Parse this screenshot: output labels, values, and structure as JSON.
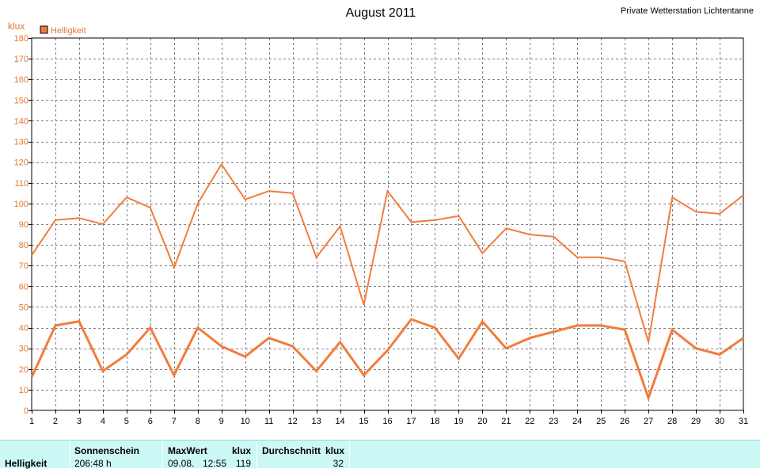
{
  "header": {
    "title": "August 2011",
    "station": "Private Wetterstation Lichtentanne"
  },
  "colors": {
    "series": "#f27c3c",
    "axis_text": "#e07830",
    "grid": "#808080",
    "summary_bg": "#ccf8f6"
  },
  "chart_data": {
    "type": "line",
    "title": "August 2011",
    "ylabel": "klux",
    "ylim": [
      0,
      180
    ],
    "yticks": [
      0,
      10,
      20,
      30,
      40,
      50,
      60,
      70,
      80,
      90,
      100,
      110,
      120,
      130,
      140,
      150,
      160,
      170,
      180
    ],
    "x": [
      1,
      2,
      3,
      4,
      5,
      6,
      7,
      8,
      9,
      10,
      11,
      12,
      13,
      14,
      15,
      16,
      17,
      18,
      19,
      20,
      21,
      22,
      23,
      24,
      25,
      26,
      27,
      28,
      29,
      30,
      31
    ],
    "xlim": [
      1,
      31
    ],
    "grid": true,
    "legend": {
      "label": "Helligkeit",
      "position": "top-left"
    },
    "series": [
      {
        "style": "max",
        "values": [
          75,
          92,
          93,
          90,
          103,
          98,
          69,
          100,
          119,
          102,
          106,
          105,
          74,
          89,
          51,
          106,
          91,
          92,
          94,
          76,
          88,
          85,
          84,
          74,
          74,
          72,
          33,
          103,
          96,
          95,
          104
        ]
      },
      {
        "style": "mean",
        "values": [
          16,
          41,
          43,
          19,
          27,
          40,
          17,
          40,
          31,
          26,
          35,
          31,
          19,
          33,
          17,
          29,
          44,
          40,
          25,
          43,
          30,
          35,
          38,
          41,
          41,
          39,
          6,
          39,
          30,
          27,
          35
        ]
      }
    ]
  },
  "summary": {
    "row_label": "Helligkeit",
    "sonnenschein": {
      "header": "Sonnenschein",
      "value": "206:48 h"
    },
    "maxwert": {
      "header": "MaxWert",
      "unit": "klux",
      "date": "09.08.",
      "time": "12:55",
      "value": "119"
    },
    "durchschnitt": {
      "header": "Durchschnitt",
      "unit": "klux",
      "value": "32"
    }
  }
}
